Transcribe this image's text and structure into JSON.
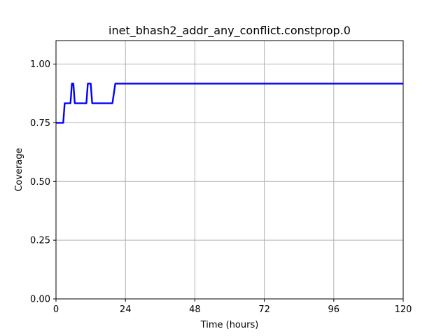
{
  "chart_data": {
    "type": "line",
    "title": "inet_bhash2_addr_any_conflict.constprop.0",
    "xlabel": "Time (hours)",
    "ylabel": "Coverage",
    "xlim": [
      0,
      120
    ],
    "ylim": [
      0,
      1.1
    ],
    "grid": true,
    "x_ticks": [
      0,
      24,
      48,
      72,
      96,
      120
    ],
    "x_tick_labels": [
      "0",
      "24",
      "48",
      "72",
      "96",
      "120"
    ],
    "y_ticks": [
      0,
      0.25,
      0.5,
      0.75,
      1.0
    ],
    "y_tick_labels": [
      "0.00",
      "0.25",
      "0.50",
      "0.75",
      "1.00"
    ],
    "series": [
      {
        "color": "#0000ff",
        "x": [
          0,
          2.5,
          3,
          5,
          5.5,
          6,
          6.5,
          10.5,
          11,
          12,
          12.5,
          19.5,
          20.5,
          120
        ],
        "y": [
          0.75,
          0.75,
          0.833,
          0.833,
          0.917,
          0.917,
          0.833,
          0.833,
          0.917,
          0.917,
          0.833,
          0.833,
          0.917,
          0.917
        ]
      }
    ]
  }
}
